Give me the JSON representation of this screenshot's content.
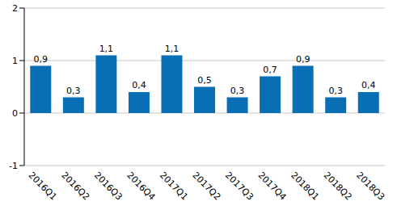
{
  "chart_data": {
    "type": "bar",
    "categories": [
      "2016Q1",
      "2016Q2",
      "2016Q3",
      "2016Q4",
      "2017Q1",
      "2017Q2",
      "2017Q3",
      "2017Q4",
      "2018Q1",
      "2018Q2",
      "2018Q3"
    ],
    "values": [
      0.9,
      0.3,
      1.1,
      0.4,
      1.1,
      0.5,
      0.3,
      0.7,
      0.9,
      0.3,
      0.4
    ],
    "value_labels": [
      "0,9",
      "0,3",
      "1,1",
      "0,4",
      "1,1",
      "0,5",
      "0,3",
      "0,7",
      "0,9",
      "0,3",
      "0,4"
    ],
    "color": "#0a6eb4",
    "ylim": [
      -1,
      2
    ],
    "yticks": [
      -1,
      0,
      1,
      2
    ],
    "grid": true,
    "data_labels": true
  }
}
